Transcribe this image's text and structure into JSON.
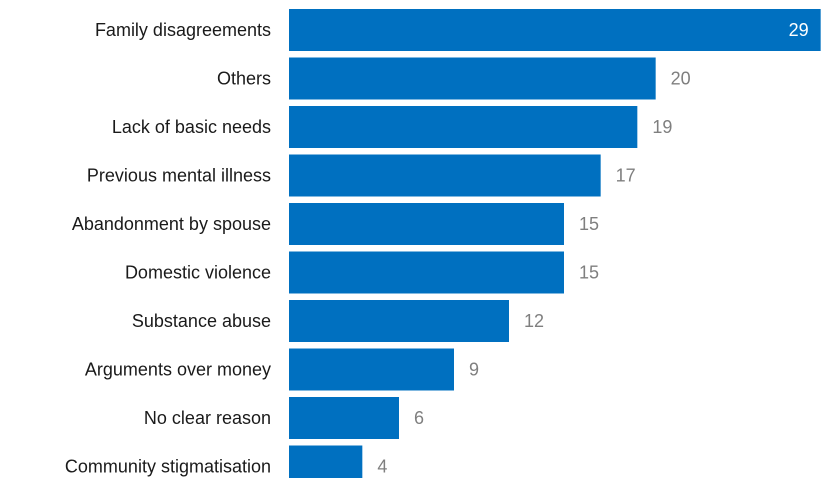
{
  "chart_data": {
    "type": "bar",
    "orientation": "horizontal",
    "title": "",
    "xlabel": "",
    "ylabel": "",
    "categories": [
      "Family disagreements",
      "Others",
      "Lack of basic needs",
      "Previous mental illness",
      "Abandonment by spouse",
      "Domestic violence",
      "Substance abuse",
      "Arguments over money",
      "No clear reason",
      "Community stigmatisation"
    ],
    "values": [
      29,
      20,
      19,
      17,
      15,
      15,
      12,
      9,
      6,
      4
    ],
    "xlim": [
      0,
      30
    ],
    "grid": false,
    "legend": "none",
    "colors": {
      "bar": "#0070c0",
      "label_inside": "#ffffff",
      "label_outside": "#7f7f7f",
      "category_text": "#1a1a1a"
    }
  }
}
